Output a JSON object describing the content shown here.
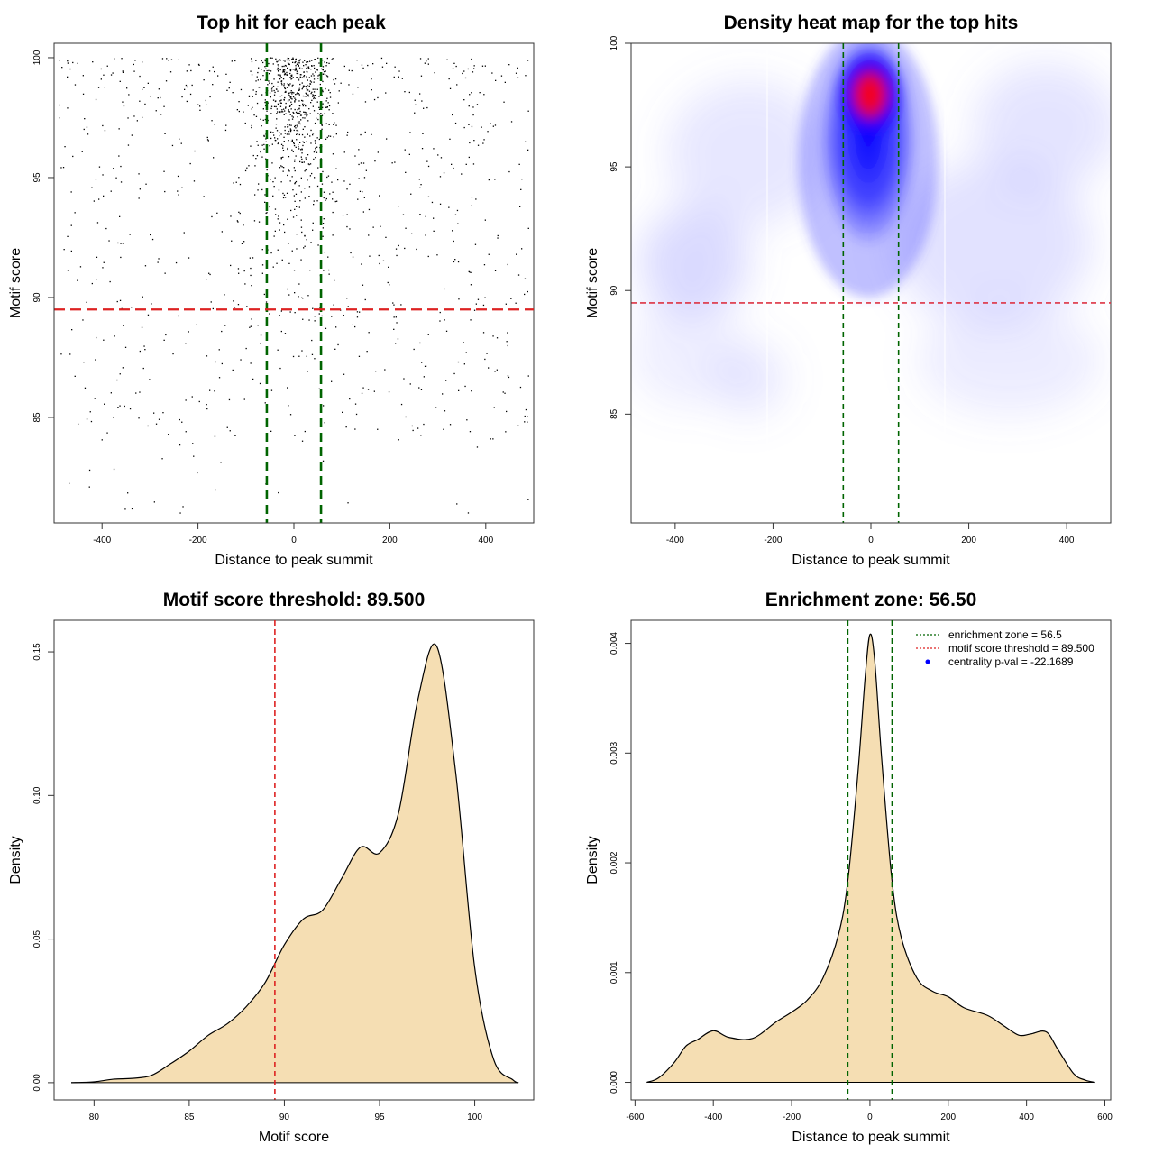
{
  "chart_data": [
    {
      "id": "scatter",
      "type": "scatter",
      "title": "Top hit for each peak",
      "xlabel": "Distance to peak summit",
      "ylabel": "Motif score",
      "xlim": [
        -500,
        500
      ],
      "ylim": [
        80.6,
        100.6
      ],
      "xticks": [
        -400,
        -200,
        0,
        200,
        400
      ],
      "yticks": [
        85,
        90,
        95,
        100
      ],
      "vlines": [
        -56.5,
        56.5
      ],
      "hline": 89.5,
      "n_points": 1500,
      "points_description_color": "#000000",
      "vline_color": "#006400",
      "hline_color": "#dd2222"
    },
    {
      "id": "heatmap",
      "type": "heatmap",
      "title": "Density heat map for the top hits",
      "xlabel": "Distance to peak summit",
      "ylabel": "Motif score",
      "xlim": [
        -490,
        490
      ],
      "ylim": [
        80.6,
        100.0
      ],
      "xticks": [
        -400,
        -200,
        0,
        200,
        400
      ],
      "yticks": [
        85,
        90,
        95,
        100
      ],
      "peak": {
        "x": 0,
        "y": 97.9
      },
      "vlines": [
        -56.5,
        56.5
      ],
      "hline": 89.5,
      "colors": [
        "#ffffff",
        "#0000ff",
        "#ff0000"
      ]
    },
    {
      "id": "score-density",
      "type": "area",
      "title": "Motif score threshold: 89.500",
      "xlabel": "Motif score",
      "ylabel": "Density",
      "xlim": [
        77.9,
        103.1
      ],
      "ylim": [
        -0.006,
        0.161
      ],
      "xticks": [
        80,
        85,
        90,
        95,
        100
      ],
      "yticks": [
        0.0,
        0.05,
        0.1,
        0.15
      ],
      "ytick_labels": [
        "0.00",
        "0.05",
        "0.10",
        "0.15"
      ],
      "x": [
        78.8,
        80,
        81,
        82,
        83,
        84,
        85,
        86,
        87,
        88,
        89,
        90,
        91,
        92,
        93,
        94,
        95,
        96,
        97,
        98,
        99,
        100,
        101,
        102,
        102.3
      ],
      "y": [
        0.0,
        0.0003,
        0.0012,
        0.0015,
        0.0025,
        0.0065,
        0.011,
        0.0165,
        0.0205,
        0.0265,
        0.035,
        0.048,
        0.057,
        0.06,
        0.071,
        0.082,
        0.08,
        0.094,
        0.133,
        0.152,
        0.108,
        0.04,
        0.008,
        0.001,
        0.0
      ],
      "threshold": 89.5,
      "fill": "#f5deb3",
      "threshold_color": "#dd2222"
    },
    {
      "id": "distance-density",
      "type": "area",
      "title": "Enrichment zone: 56.50",
      "xlabel": "Distance to peak summit",
      "ylabel": "Density",
      "xlim": [
        -610,
        615
      ],
      "ylim": [
        -0.00016,
        0.00421
      ],
      "xticks": [
        -600,
        -400,
        -200,
        0,
        200,
        400,
        600
      ],
      "yticks": [
        0.0,
        0.001,
        0.002,
        0.003,
        0.004
      ],
      "ytick_labels": [
        "0.000",
        "0.001",
        "0.002",
        "0.003",
        "0.004"
      ],
      "x": [
        -570,
        -540,
        -500,
        -470,
        -440,
        -400,
        -360,
        -300,
        -240,
        -200,
        -160,
        -120,
        -80,
        -56,
        -30,
        -12,
        0,
        12,
        30,
        56,
        80,
        120,
        160,
        200,
        240,
        300,
        340,
        380,
        410,
        450,
        480,
        520,
        550,
        575
      ],
      "y": [
        0.0,
        4e-05,
        0.00018,
        0.00033,
        0.00039,
        0.00047,
        0.00041,
        0.0004,
        0.00055,
        0.00064,
        0.00075,
        0.00095,
        0.00135,
        0.00185,
        0.00285,
        0.0037,
        0.00408,
        0.00385,
        0.00295,
        0.00185,
        0.00132,
        0.00095,
        0.00083,
        0.00078,
        0.00068,
        0.00061,
        0.00052,
        0.00043,
        0.00044,
        0.00046,
        0.0003,
        8e-05,
        2e-05,
        0.0
      ],
      "vlines": [
        -56.5,
        56.5
      ],
      "fill": "#f5deb3",
      "vline_color": "#006400",
      "legend": {
        "position": "top-right",
        "entries": [
          {
            "label": "enrichment zone = 56.5",
            "color": "#006400",
            "kind": "line"
          },
          {
            "label": "motif score threshold = 89.500",
            "color": "#dd2222",
            "kind": "line"
          },
          {
            "label": "centrality p-val = -22.1689",
            "color": "#0000ff",
            "kind": "point"
          }
        ]
      }
    }
  ]
}
